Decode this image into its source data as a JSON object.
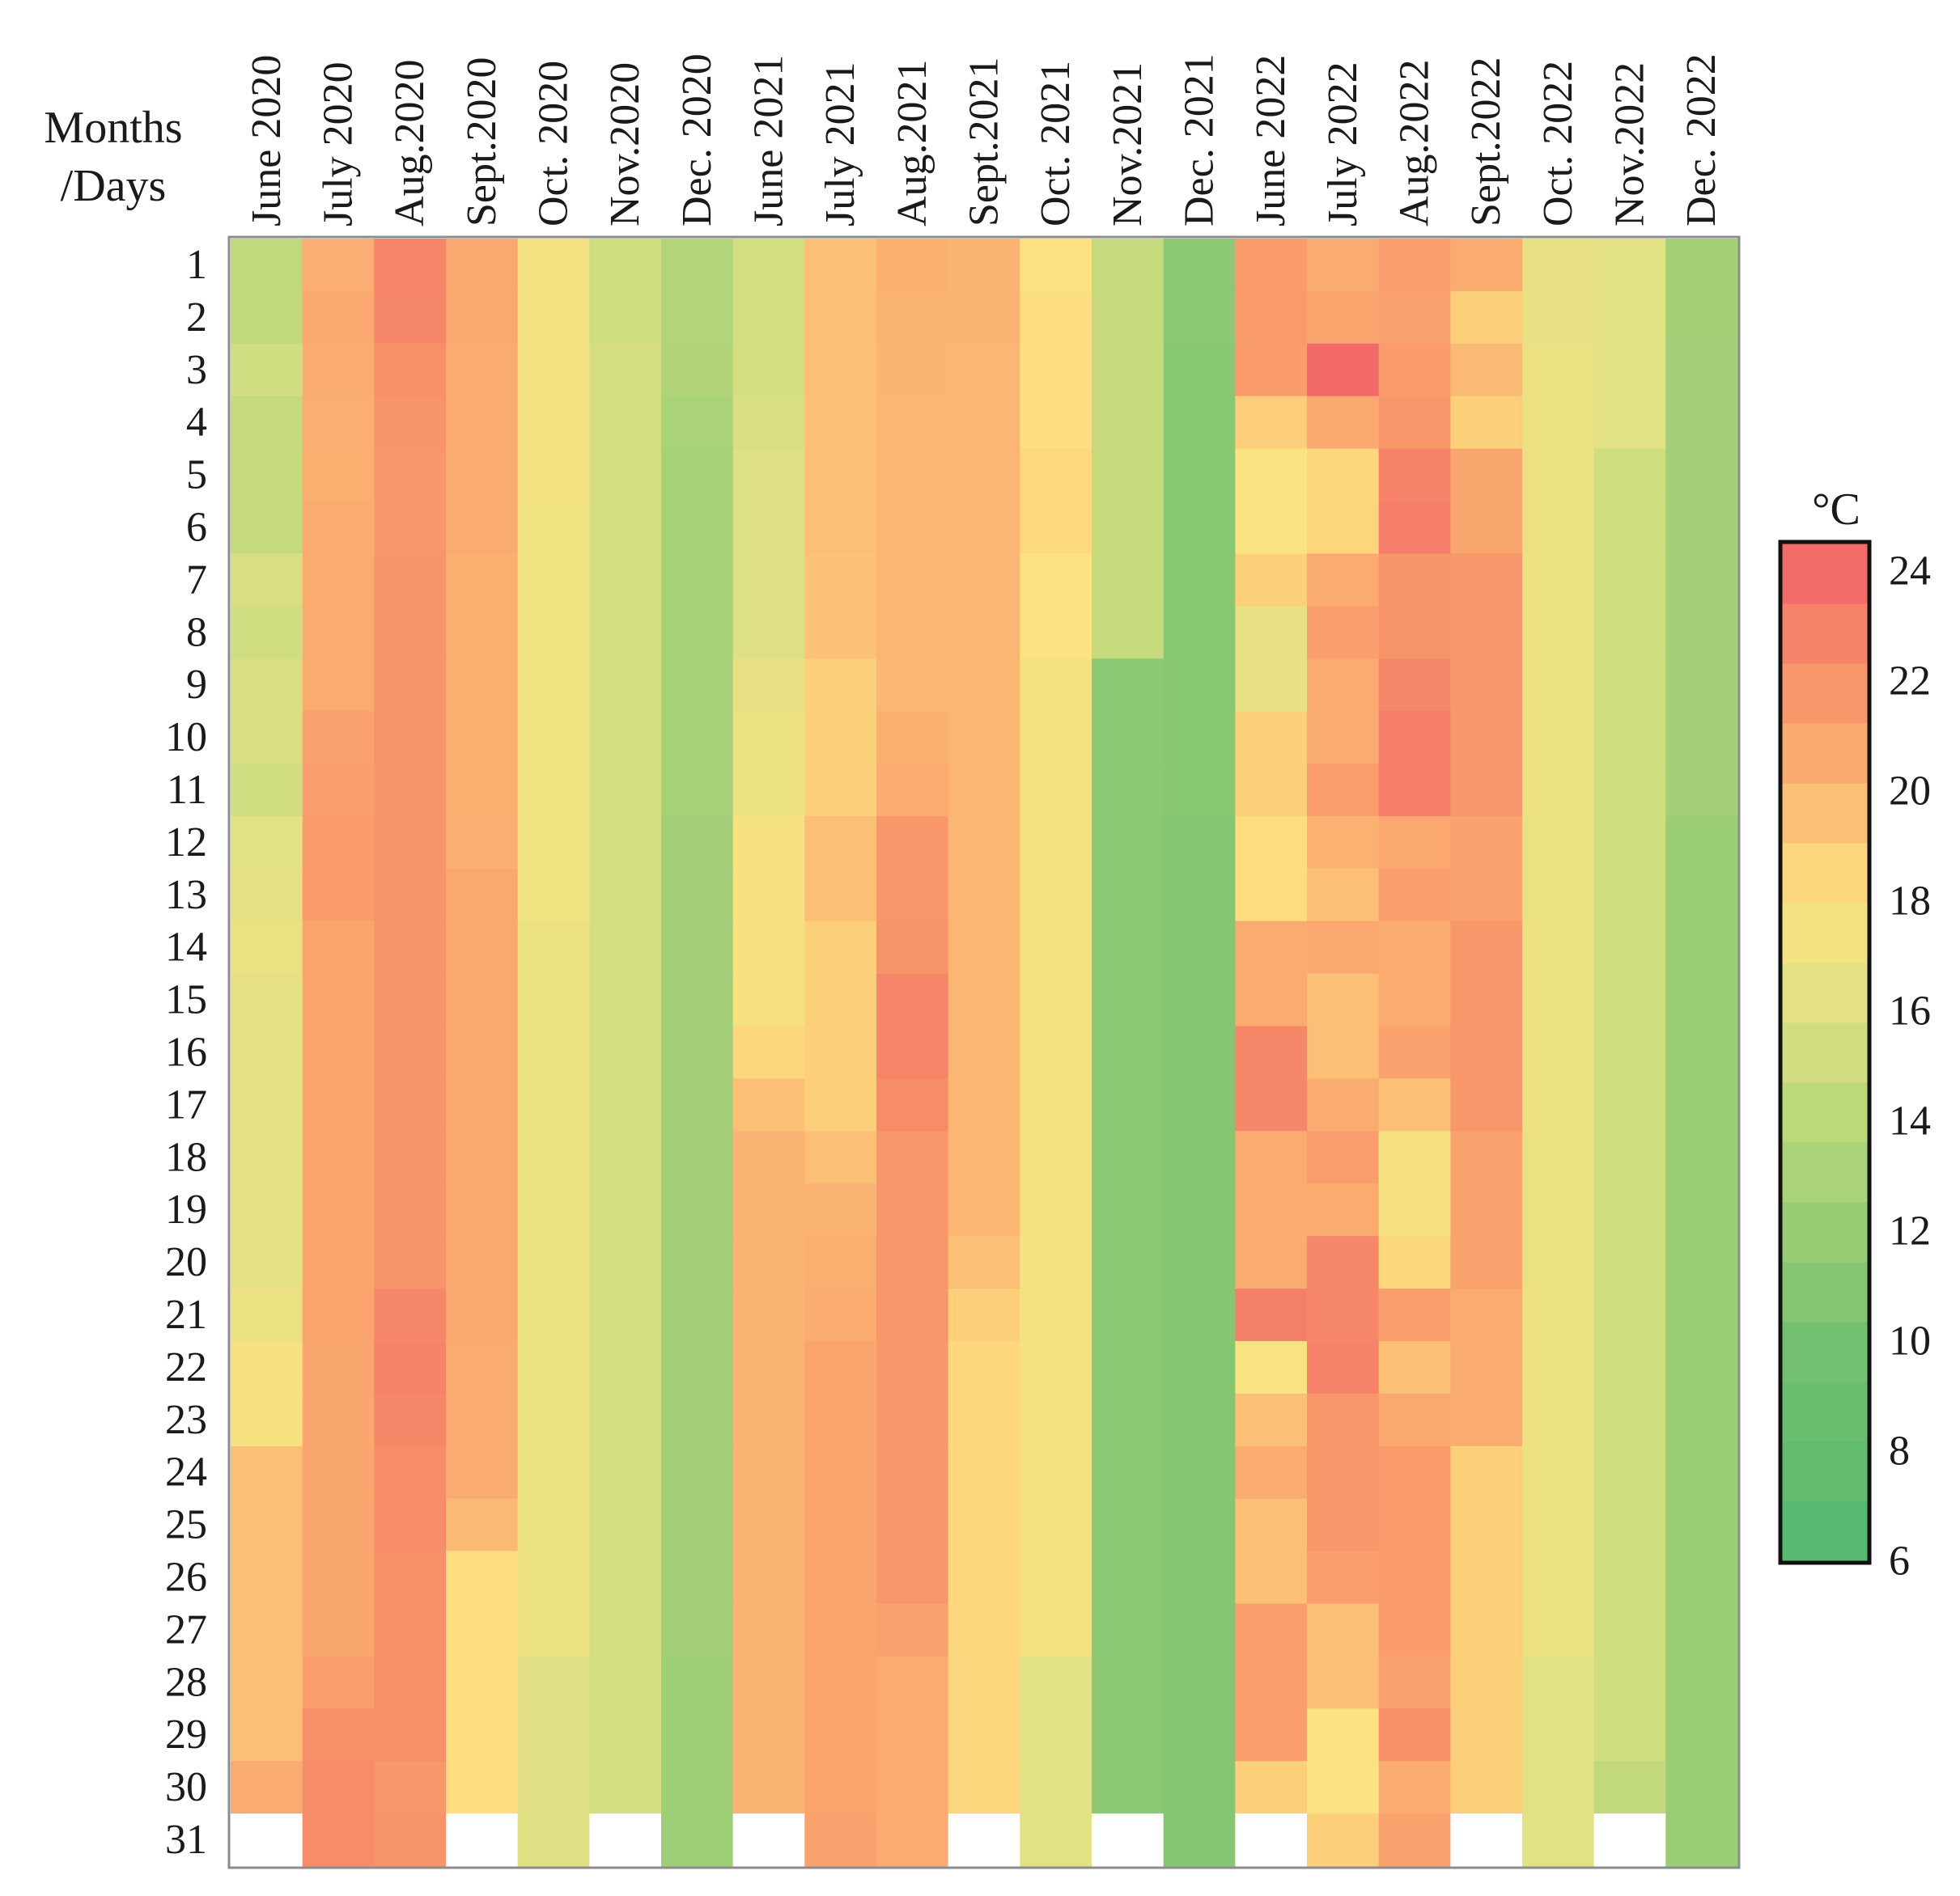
{
  "chart_data": {
    "type": "heatmap",
    "title": "",
    "corner_label": [
      "Months",
      "/Days"
    ],
    "xlabel": "Months",
    "ylabel": "Days",
    "x_categories": [
      "June 2020",
      "July 2020",
      "Aug.2020",
      "Sept.2020",
      "Oct. 2020",
      "Nov.2020",
      "Dec. 2020",
      "June 2021",
      "July 2021",
      "Aug.2021",
      "Sept.2021",
      "Oct. 2021",
      "Nov.2021",
      "Dec. 2021",
      "June 2022",
      "July 2022",
      "Aug.2022",
      "Sept.2022",
      "Oct. 2022",
      "Nov.2022",
      "Dec. 2022"
    ],
    "y_categories": [
      "1",
      "2",
      "3",
      "4",
      "5",
      "6",
      "7",
      "8",
      "9",
      "10",
      "11",
      "12",
      "13",
      "14",
      "15",
      "16",
      "17",
      "18",
      "19",
      "20",
      "21",
      "22",
      "23",
      "24",
      "25",
      "26",
      "27",
      "28",
      "29",
      "30",
      "31"
    ],
    "colorbar": {
      "unit": "°C",
      "range": [
        6,
        24.5
      ],
      "ticks": [
        "6",
        "8",
        "10",
        "12",
        "14",
        "16",
        "18",
        "20",
        "22",
        "24"
      ],
      "colormap": [
        {
          "value": 6,
          "color": "#56b870"
        },
        {
          "value": 10,
          "color": "#74c170"
        },
        {
          "value": 14,
          "color": "#bad77a"
        },
        {
          "value": 16,
          "color": "#dfe184"
        },
        {
          "value": 18,
          "color": "#fde281"
        },
        {
          "value": 20,
          "color": "#fbb673"
        },
        {
          "value": 22,
          "color": "#f89469"
        },
        {
          "value": 24.5,
          "color": "#f06169"
        }
      ]
    },
    "missing_cell_color": "#ffffff",
    "values": [
      [
        14.4,
        20.5,
        22.8,
        20.8,
        17.4,
        15.1,
        13.6,
        15.3,
        19.6,
        20.4,
        20.1,
        18.1,
        14.6,
        11.4,
        21.6,
        20.6,
        21.5,
        20.6,
        16.6,
        16.2,
        12.7
      ],
      [
        14.4,
        20.7,
        22.6,
        20.8,
        17.4,
        15.1,
        13.6,
        15.3,
        19.6,
        20.2,
        20.1,
        18.2,
        14.6,
        11.4,
        21.6,
        21.0,
        21.2,
        18.8,
        16.6,
        16.2,
        12.7
      ],
      [
        15.2,
        20.6,
        22.2,
        20.6,
        17.4,
        15.4,
        13.5,
        15.4,
        19.6,
        20.1,
        20.0,
        18.2,
        14.6,
        11.2,
        21.6,
        24.1,
        21.6,
        19.8,
        16.8,
        16.2,
        12.6
      ],
      [
        14.6,
        20.5,
        22.0,
        20.6,
        17.4,
        15.4,
        13.1,
        15.6,
        19.6,
        20.0,
        20.0,
        18.2,
        14.6,
        11.2,
        18.9,
        20.7,
        21.8,
        18.8,
        16.8,
        16.2,
        12.6
      ],
      [
        14.6,
        20.4,
        21.8,
        20.6,
        17.4,
        15.4,
        12.9,
        15.9,
        19.6,
        20.0,
        20.0,
        18.4,
        14.6,
        11.2,
        17.9,
        18.6,
        22.9,
        20.9,
        16.8,
        15.1,
        12.6
      ],
      [
        14.6,
        20.6,
        21.8,
        20.6,
        17.2,
        15.4,
        12.9,
        15.9,
        19.6,
        20.0,
        20.0,
        18.4,
        14.6,
        11.2,
        17.9,
        18.6,
        23.1,
        20.9,
        16.8,
        15.1,
        12.6
      ],
      [
        15.6,
        20.6,
        21.9,
        20.4,
        17.2,
        15.4,
        12.9,
        15.9,
        19.4,
        20.0,
        20.0,
        18.0,
        14.6,
        11.2,
        18.8,
        20.6,
        21.9,
        21.8,
        16.8,
        15.1,
        12.6
      ],
      [
        15.2,
        20.6,
        21.9,
        20.4,
        17.2,
        15.4,
        12.9,
        15.9,
        19.4,
        20.0,
        20.0,
        18.0,
        14.6,
        11.2,
        16.6,
        21.4,
        21.9,
        21.8,
        16.8,
        15.1,
        12.6
      ],
      [
        15.6,
        20.6,
        22.0,
        20.4,
        17.2,
        15.4,
        12.9,
        16.6,
        18.8,
        20.0,
        20.0,
        17.4,
        11.4,
        11.2,
        16.6,
        20.6,
        22.6,
        21.8,
        16.8,
        15.1,
        12.6
      ],
      [
        15.6,
        21.2,
        22.0,
        20.4,
        17.2,
        15.4,
        12.9,
        16.9,
        18.8,
        20.4,
        20.0,
        17.4,
        11.4,
        11.2,
        18.8,
        20.6,
        23.1,
        21.8,
        16.8,
        15.1,
        12.6
      ],
      [
        15.2,
        21.4,
        22.0,
        20.4,
        17.2,
        15.4,
        12.9,
        16.9,
        18.8,
        20.6,
        20.0,
        17.4,
        11.4,
        11.2,
        18.8,
        21.5,
        23.1,
        21.8,
        16.8,
        15.1,
        12.6
      ],
      [
        16.2,
        21.6,
        22.0,
        20.5,
        17.2,
        15.4,
        12.6,
        17.6,
        19.6,
        21.8,
        20.0,
        17.4,
        11.4,
        10.9,
        18.3,
        20.3,
        20.8,
        21.2,
        16.8,
        15.1,
        12.2
      ],
      [
        16.4,
        21.6,
        22.0,
        20.8,
        17.2,
        15.4,
        12.6,
        17.6,
        19.6,
        21.8,
        20.0,
        17.4,
        11.4,
        10.9,
        18.3,
        19.6,
        21.4,
        21.2,
        16.8,
        15.1,
        12.2
      ],
      [
        16.8,
        21.0,
        22.0,
        20.8,
        16.8,
        15.4,
        12.6,
        17.6,
        18.8,
        22.0,
        20.0,
        17.4,
        11.4,
        10.9,
        20.6,
        20.8,
        20.6,
        21.8,
        16.8,
        15.1,
        12.2
      ],
      [
        16.4,
        21.0,
        22.0,
        20.8,
        16.8,
        15.4,
        12.6,
        17.6,
        18.8,
        22.8,
        20.0,
        17.4,
        11.4,
        10.9,
        20.6,
        19.6,
        20.6,
        21.8,
        16.8,
        15.1,
        12.2
      ],
      [
        16.4,
        21.0,
        22.0,
        20.8,
        16.8,
        15.4,
        12.6,
        18.5,
        18.8,
        22.8,
        20.0,
        17.4,
        11.4,
        10.9,
        22.6,
        19.6,
        21.2,
        21.8,
        16.8,
        15.1,
        12.2
      ],
      [
        16.4,
        21.0,
        22.0,
        20.8,
        16.8,
        15.4,
        12.6,
        19.6,
        18.8,
        22.4,
        20.0,
        17.4,
        11.4,
        10.9,
        22.6,
        20.6,
        19.6,
        21.8,
        16.8,
        15.1,
        12.2
      ],
      [
        16.4,
        21.0,
        22.0,
        20.8,
        16.8,
        15.4,
        12.6,
        20.1,
        19.6,
        21.8,
        20.0,
        17.4,
        11.4,
        10.9,
        20.6,
        21.4,
        17.6,
        21.2,
        16.8,
        15.1,
        12.2
      ],
      [
        16.4,
        21.0,
        22.0,
        20.8,
        16.8,
        15.4,
        12.6,
        20.1,
        20.1,
        21.8,
        20.0,
        17.4,
        11.4,
        10.9,
        20.6,
        20.6,
        17.6,
        21.2,
        16.8,
        15.1,
        12.2
      ],
      [
        16.4,
        21.0,
        22.0,
        20.8,
        16.8,
        15.4,
        12.6,
        20.1,
        20.4,
        21.8,
        19.6,
        17.4,
        11.4,
        10.9,
        20.6,
        22.6,
        18.5,
        21.2,
        16.8,
        15.1,
        12.2
      ],
      [
        16.8,
        21.0,
        22.6,
        20.8,
        16.8,
        15.4,
        12.6,
        20.1,
        20.6,
        21.8,
        18.8,
        17.4,
        11.4,
        10.9,
        23.0,
        22.6,
        21.4,
        20.6,
        16.8,
        15.1,
        12.2
      ],
      [
        17.6,
        20.9,
        22.9,
        20.6,
        16.8,
        15.4,
        12.6,
        20.1,
        21.0,
        21.8,
        18.5,
        17.4,
        11.4,
        10.9,
        17.7,
        22.9,
        19.6,
        20.6,
        16.8,
        15.1,
        12.2
      ],
      [
        17.6,
        20.9,
        22.6,
        20.6,
        16.8,
        15.4,
        12.6,
        20.1,
        21.0,
        21.8,
        18.5,
        17.4,
        11.4,
        10.9,
        19.6,
        21.8,
        20.8,
        20.6,
        16.8,
        15.1,
        12.2
      ],
      [
        19.6,
        20.9,
        22.4,
        20.6,
        16.8,
        15.4,
        12.6,
        20.1,
        21.0,
        21.8,
        18.5,
        17.4,
        11.4,
        10.9,
        20.6,
        21.8,
        21.6,
        18.8,
        16.8,
        15.1,
        12.2
      ],
      [
        19.6,
        20.9,
        22.4,
        19.8,
        16.8,
        15.4,
        12.6,
        20.1,
        21.0,
        21.8,
        18.5,
        17.4,
        11.4,
        10.9,
        19.6,
        21.8,
        21.6,
        18.8,
        16.8,
        15.1,
        12.2
      ],
      [
        19.6,
        20.9,
        22.2,
        18.2,
        16.8,
        15.4,
        12.6,
        20.1,
        21.0,
        21.8,
        18.5,
        17.4,
        11.4,
        10.9,
        19.6,
        21.4,
        21.6,
        18.8,
        16.8,
        15.1,
        12.2
      ],
      [
        19.6,
        20.9,
        22.2,
        18.2,
        16.8,
        15.4,
        12.6,
        20.1,
        21.0,
        21.2,
        18.5,
        17.4,
        11.4,
        10.9,
        21.4,
        19.6,
        21.6,
        18.8,
        16.8,
        15.1,
        12.2
      ],
      [
        19.6,
        21.4,
        22.2,
        18.2,
        16.0,
        15.4,
        12.4,
        20.1,
        21.0,
        20.6,
        18.5,
        16.2,
        11.4,
        10.9,
        21.4,
        19.6,
        21.2,
        18.8,
        16.2,
        15.1,
        12.2
      ],
      [
        19.6,
        22.2,
        22.2,
        18.2,
        16.0,
        15.4,
        12.4,
        20.1,
        21.0,
        20.6,
        18.5,
        16.2,
        11.4,
        10.9,
        21.4,
        18.0,
        22.2,
        18.8,
        16.2,
        15.1,
        12.2
      ],
      [
        20.6,
        22.4,
        21.8,
        18.2,
        16.0,
        15.4,
        12.4,
        20.1,
        21.0,
        20.6,
        18.5,
        16.2,
        11.4,
        10.9,
        18.8,
        18.0,
        20.6,
        18.8,
        16.2,
        14.4,
        12.2
      ],
      [
        null,
        22.4,
        22.0,
        null,
        16.0,
        null,
        12.4,
        null,
        21.2,
        20.6,
        null,
        16.2,
        null,
        10.9,
        null,
        18.8,
        21.2,
        null,
        16.2,
        null,
        12.2
      ]
    ]
  }
}
